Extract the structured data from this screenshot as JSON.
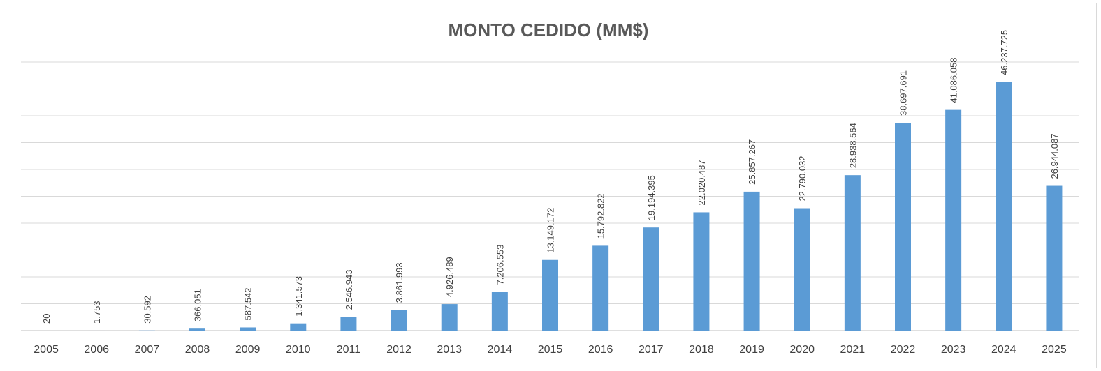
{
  "chart_data": {
    "type": "bar",
    "title": "MONTO CEDIDO (MM$)",
    "xlabel": "",
    "ylabel": "",
    "categories": [
      "2005",
      "2006",
      "2007",
      "2008",
      "2009",
      "2010",
      "2011",
      "2012",
      "2013",
      "2014",
      "2015",
      "2016",
      "2017",
      "2018",
      "2019",
      "2020",
      "2021",
      "2022",
      "2023",
      "2024",
      "2025"
    ],
    "values": [
      20,
      1753,
      30592,
      366051,
      587542,
      1341573,
      2546943,
      3861993,
      4926489,
      7206553,
      13149172,
      15792822,
      19194395,
      22020487,
      25857267,
      22790032,
      28938564,
      38697691,
      41086058,
      46237725,
      26944087
    ],
    "value_labels": [
      "20",
      "1.753",
      "30.592",
      "366.051",
      "587.542",
      "1.341.573",
      "2.546.943",
      "3.861.993",
      "4.926.489",
      "7.206.553",
      "13.149.172",
      "15.792.822",
      "19.194.395",
      "22.020.487",
      "25.857.267",
      "22.790.032",
      "28.938.564",
      "38.697.691",
      "41.086.058",
      "46.237.725",
      "26.944.087"
    ],
    "ylim": [
      0,
      50000000
    ],
    "grid": true,
    "legend": "none",
    "bar_color": "#5b9bd5"
  }
}
